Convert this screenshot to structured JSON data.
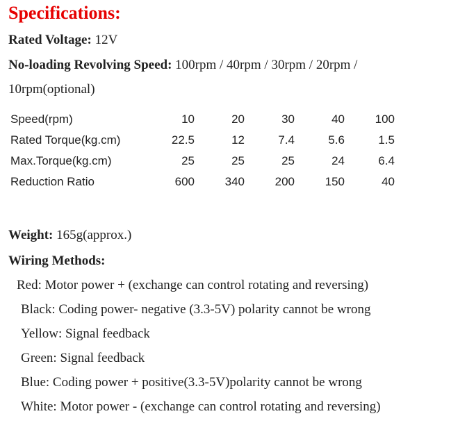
{
  "title": "Specifications:",
  "rated_voltage": {
    "label": "Rated Voltage:",
    "value": "12V"
  },
  "no_load_speed": {
    "label": "No-loading Revolving Speed:",
    "value_line1": "100rpm / 40rpm / 30rpm / 20rpm /",
    "value_line2": "10rpm(optional)"
  },
  "table": {
    "rows": [
      {
        "label": "Speed(rpm)",
        "values": [
          "10",
          "20",
          "30",
          "40",
          "100"
        ]
      },
      {
        "label": "Rated Torque(kg.cm)",
        "values": [
          "22.5",
          "12",
          "7.4",
          "5.6",
          "1.5"
        ]
      },
      {
        "label": "Max.Torque(kg.cm)",
        "values": [
          "25",
          "25",
          "25",
          "24",
          "6.4"
        ]
      },
      {
        "label": "Reduction Ratio",
        "values": [
          "600",
          "340",
          "200",
          "150",
          "40"
        ]
      }
    ]
  },
  "weight": {
    "label": "Weight:",
    "value": "165g(approx.)"
  },
  "wiring": {
    "label": "Wiring Methods:",
    "items": [
      "Red: Motor power + (exchange can control rotating and reversing)",
      "Black: Coding power- negative (3.3-5V) polarity cannot be wrong",
      "Yellow: Signal feedback",
      "Green: Signal feedback",
      "Blue: Coding power + positive(3.3-5V)polarity cannot be wrong",
      "White: Motor power - (exchange can control rotating and reversing)"
    ]
  },
  "colors": {
    "title": "#e60000",
    "text": "#222222"
  }
}
